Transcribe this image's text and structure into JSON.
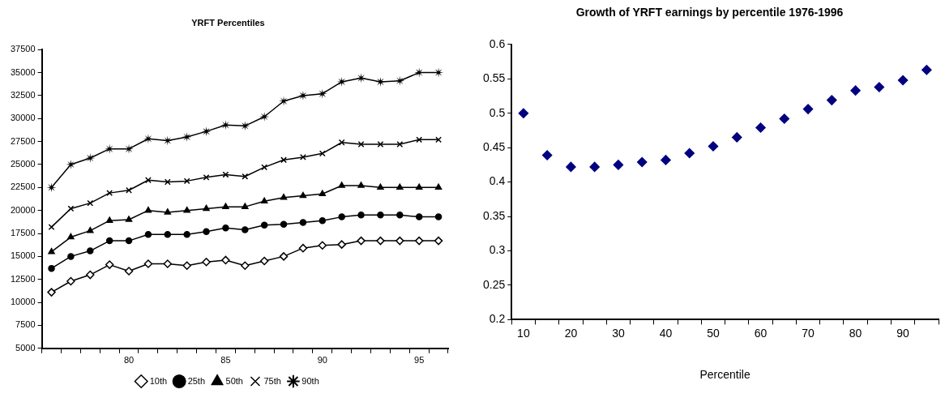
{
  "chart_data": [
    {
      "type": "line",
      "title": "YRFT Percentiles",
      "categories": [
        null,
        null,
        null,
        null,
        "80",
        null,
        null,
        null,
        null,
        "85",
        null,
        null,
        null,
        null,
        "90",
        null,
        null,
        null,
        null,
        "95",
        null
      ],
      "series": [
        {
          "name": "10th",
          "color": "#000000",
          "marker": "diamond",
          "values": [
            11100,
            12300,
            13000,
            14100,
            13400,
            14200,
            14200,
            14000,
            14400,
            14600,
            14000,
            14500,
            15000,
            15900,
            16200,
            16300,
            16700,
            16700,
            16700,
            16700,
            16700
          ]
        },
        {
          "name": "25th",
          "color": "#000000",
          "marker": "circle",
          "values": [
            13700,
            15000,
            15600,
            16700,
            16700,
            17400,
            17400,
            17400,
            17700,
            18100,
            17900,
            18400,
            18500,
            18700,
            18900,
            19300,
            19500,
            19500,
            19500,
            19300,
            19300
          ]
        },
        {
          "name": "50th",
          "color": "#000000",
          "marker": "triangle",
          "values": [
            15500,
            17100,
            17800,
            18900,
            19000,
            20000,
            19800,
            20000,
            20200,
            20400,
            20400,
            21000,
            21400,
            21600,
            21800,
            22700,
            22700,
            22500,
            22500,
            22500,
            22500
          ]
        },
        {
          "name": "75th",
          "color": "#000000",
          "marker": "cross",
          "values": [
            18200,
            20200,
            20800,
            21900,
            22200,
            23300,
            23100,
            23200,
            23600,
            23900,
            23700,
            24700,
            25500,
            25800,
            26200,
            27400,
            27200,
            27200,
            27200,
            27700,
            27700
          ]
        },
        {
          "name": "90th",
          "color": "#000000",
          "marker": "star",
          "values": [
            22500,
            25000,
            25700,
            26700,
            26700,
            27800,
            27600,
            28000,
            28600,
            29300,
            29200,
            30200,
            31900,
            32500,
            32700,
            34000,
            34400,
            34000,
            34100,
            35000,
            35000
          ]
        }
      ],
      "ylim": [
        5000,
        37500
      ],
      "yticks": [
        5000,
        7500,
        10000,
        12500,
        15000,
        17500,
        20000,
        22500,
        25000,
        27500,
        30000,
        32500,
        35000,
        37500
      ],
      "legend": "bottom"
    },
    {
      "type": "scatter",
      "title": "Growth of YRFT earnings by percentile 1976-1996",
      "xlabel": "Percentile",
      "categories": [
        "10",
        null,
        "20",
        null,
        "30",
        null,
        "40",
        null,
        "50",
        null,
        "60",
        null,
        "70",
        null,
        "80",
        null,
        "90",
        null
      ],
      "series": [
        {
          "color": "#000080",
          "marker": "diamond",
          "values": [
            0.5,
            0.439,
            0.422,
            0.422,
            0.425,
            0.429,
            0.432,
            0.442,
            0.452,
            0.465,
            0.479,
            0.492,
            0.506,
            0.519,
            0.533,
            0.538,
            0.548,
            0.563
          ]
        }
      ],
      "ylim": [
        0.2,
        0.6
      ],
      "yticks": [
        0.2,
        0.25,
        0.3,
        0.35,
        0.4,
        0.45,
        0.5,
        0.55,
        0.6
      ],
      "legend": false
    }
  ]
}
